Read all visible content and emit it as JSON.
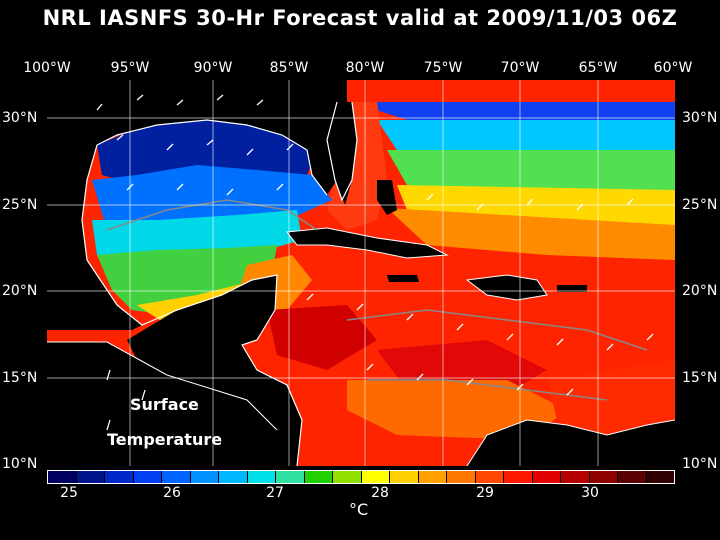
{
  "title": "NRL IASNFS  30-Hr Forecast valid at 2009/11/03 06Z",
  "lon_labels": [
    "100°W",
    "95°W",
    "90°W",
    "85°W",
    "80°W",
    "75°W",
    "70°W",
    "65°W",
    "60°W"
  ],
  "lat_labels": [
    "30°N",
    "25°N",
    "20°N",
    "15°N",
    "10°N"
  ],
  "map_text": {
    "line1": "Surface",
    "line2": "Temperature"
  },
  "colorbar": {
    "colors": [
      "#000060",
      "#00148c",
      "#0028c8",
      "#0040f0",
      "#0064ff",
      "#0090ff",
      "#00b8ff",
      "#00e0e8",
      "#30e0a0",
      "#20d000",
      "#90e000",
      "#ffff00",
      "#ffd000",
      "#ffa000",
      "#ff7800",
      "#ff4800",
      "#ff1800",
      "#e00000",
      "#b80000",
      "#900000",
      "#5a0000",
      "#300000"
    ],
    "ticks": [
      "25",
      "26",
      "27",
      "28",
      "29",
      "30"
    ],
    "units": "°C"
  },
  "chart_data": {
    "type": "heatmap",
    "title": "NRL IASNFS  30-Hr Forecast valid at 2009/11/03 06Z",
    "variable": "Surface Temperature",
    "units": "°C",
    "lon_range": [
      -100,
      -60
    ],
    "lat_range": [
      10,
      31
    ],
    "value_range": [
      24.7,
      30.8
    ],
    "colorbar_ticks": [
      25,
      26,
      27,
      28,
      29,
      30
    ],
    "grid": true
  }
}
